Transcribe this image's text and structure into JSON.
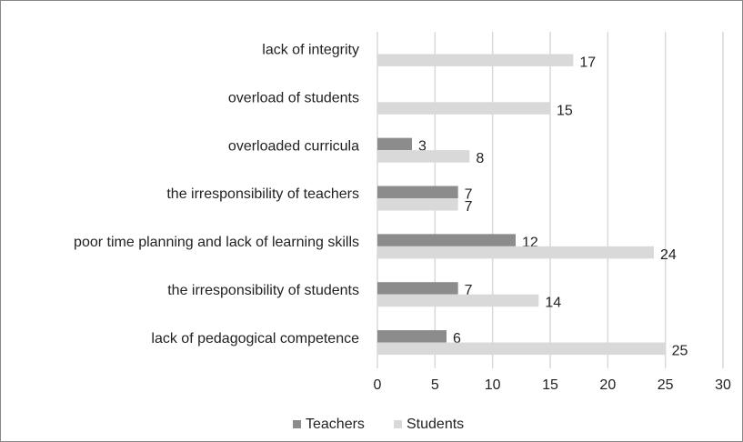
{
  "chart_data": {
    "type": "bar",
    "orientation": "horizontal",
    "categories": [
      "lack of integrity",
      "overload of students",
      "overloaded curricula",
      "the irresponsibility of teachers",
      "poor time planning and lack of learning skills",
      "the irresponsibility of students",
      "lack of pedagogical competence"
    ],
    "series": [
      {
        "name": "Teachers",
        "color": "#8c8c8c",
        "values": [
          null,
          null,
          3,
          7,
          12,
          7,
          6
        ]
      },
      {
        "name": "Students",
        "color": "#d9d9d9",
        "values": [
          17,
          15,
          8,
          7,
          24,
          14,
          25
        ]
      }
    ],
    "xlim": [
      0,
      30
    ],
    "xticks": [
      0,
      5,
      10,
      15,
      20,
      25,
      30
    ],
    "grid": true,
    "legend": "bottom"
  }
}
